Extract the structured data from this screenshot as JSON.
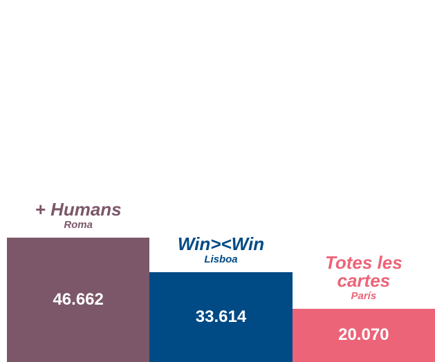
{
  "chart_data": {
    "type": "bar",
    "categories": [
      "+ Humans",
      "Win><Win",
      "Totes les cartes"
    ],
    "locations": [
      "Roma",
      "Lisboa",
      "París"
    ],
    "values": [
      46662,
      33614,
      20070
    ],
    "value_labels": [
      "46.662",
      "33.614",
      "20.070"
    ],
    "colors": [
      "#7b5769",
      "#004a85",
      "#ec6478"
    ]
  }
}
